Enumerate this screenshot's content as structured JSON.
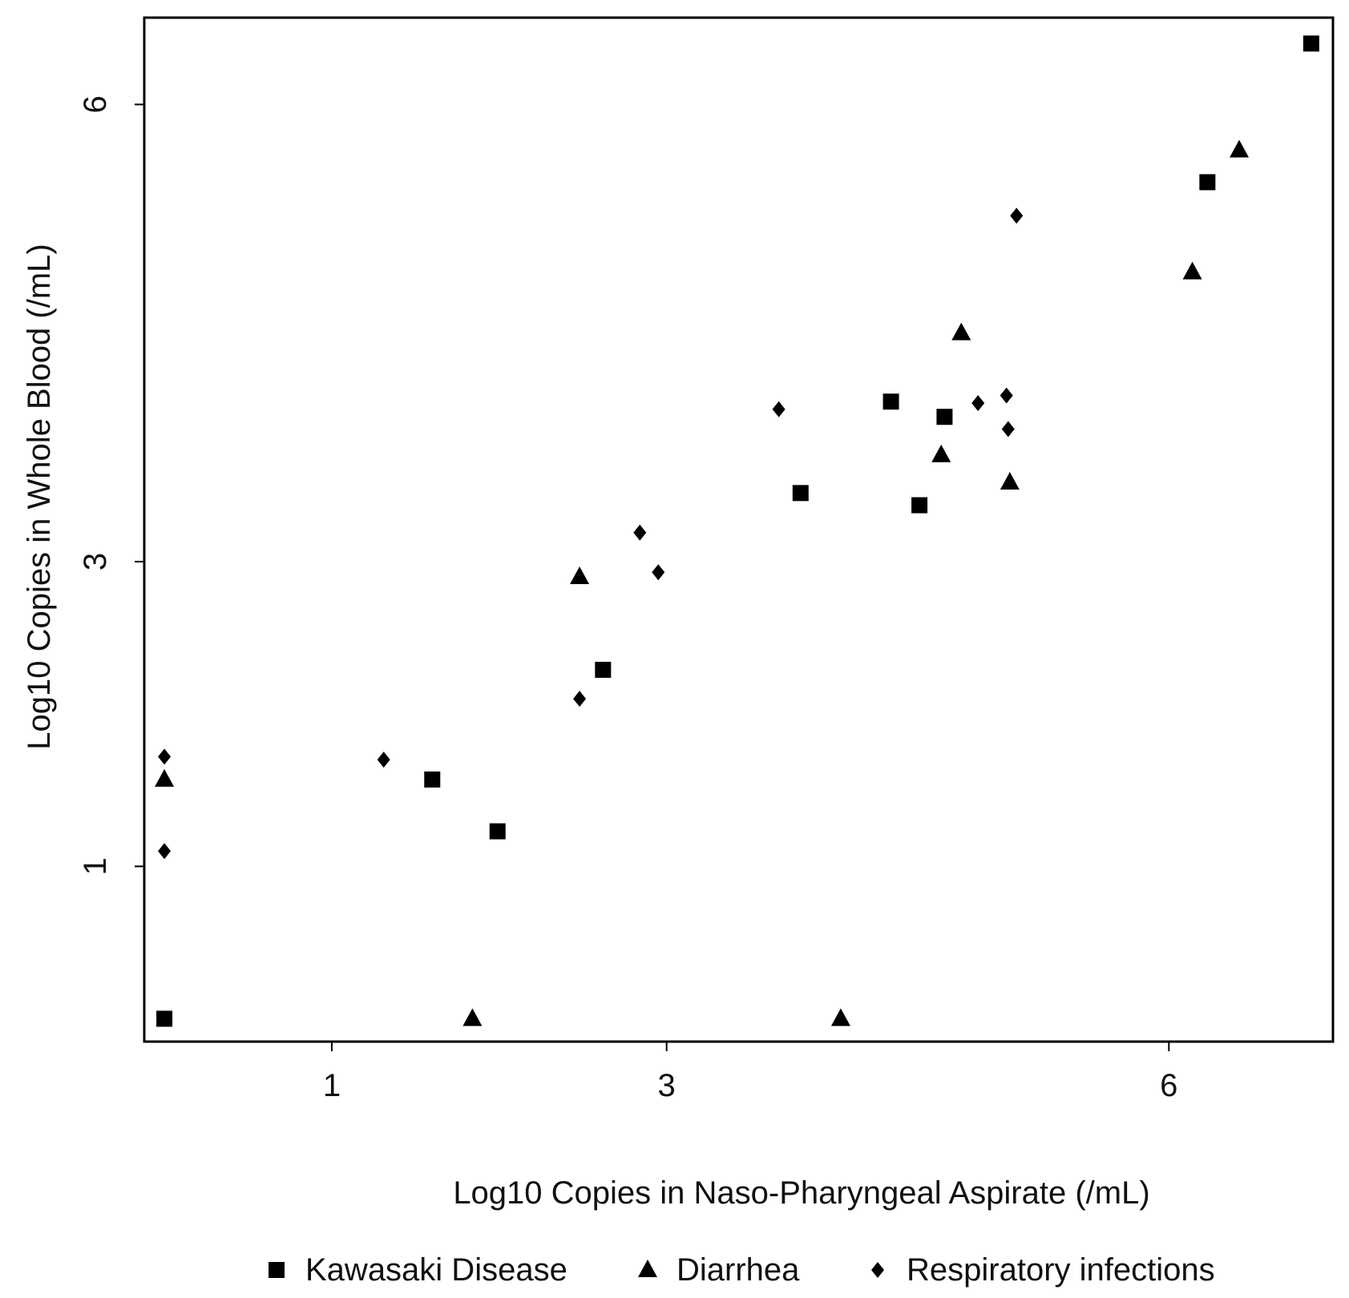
{
  "chart_data": {
    "type": "scatter",
    "xlabel": "Log10 Copies in Naso-Pharyngeal Aspirate (/mL)",
    "ylabel": "Log10 Copies in Whole Blood (/mL)",
    "x_ticks": [
      1,
      3,
      6
    ],
    "y_ticks": [
      1,
      3,
      6
    ],
    "x_tick_labels": [
      "1",
      "3",
      "6"
    ],
    "y_tick_labels": [
      "1",
      "3",
      "6"
    ],
    "xlim": [
      -0.12,
      6.98
    ],
    "ylim": [
      -0.15,
      6.57
    ],
    "grid": false,
    "legend_position": "bottom",
    "series": [
      {
        "name": "Kawasaki Disease",
        "marker": "square",
        "color": "#000000",
        "points": [
          [
            0.0,
            0.0
          ],
          [
            1.6,
            1.57
          ],
          [
            1.99,
            1.23
          ],
          [
            2.62,
            2.29
          ],
          [
            3.8,
            3.45
          ],
          [
            4.34,
            4.05
          ],
          [
            4.66,
            3.95
          ],
          [
            4.51,
            3.37
          ],
          [
            6.23,
            5.49
          ],
          [
            6.85,
            6.4
          ]
        ]
      },
      {
        "name": "Diarrhea",
        "marker": "triangle",
        "color": "#000000",
        "points": [
          [
            0.0,
            1.57
          ],
          [
            1.84,
            0.0
          ],
          [
            2.48,
            2.9
          ],
          [
            4.04,
            0.0
          ],
          [
            4.64,
            3.7
          ],
          [
            4.76,
            4.5
          ],
          [
            5.05,
            3.52
          ],
          [
            6.14,
            4.9
          ],
          [
            6.42,
            5.7
          ]
        ]
      },
      {
        "name": "Respiratory infections",
        "marker": "diamond",
        "color": "#000000",
        "points": [
          [
            0.0,
            1.1
          ],
          [
            0.0,
            1.72
          ],
          [
            1.31,
            1.7
          ],
          [
            2.48,
            2.1
          ],
          [
            2.84,
            3.19
          ],
          [
            2.95,
            2.93
          ],
          [
            3.67,
            4.0
          ],
          [
            4.86,
            4.04
          ],
          [
            5.03,
            4.09
          ],
          [
            5.04,
            3.87
          ],
          [
            5.09,
            5.27
          ]
        ]
      }
    ]
  }
}
